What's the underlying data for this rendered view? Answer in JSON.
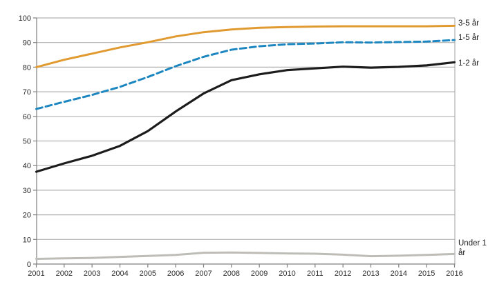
{
  "chart_data": {
    "type": "line",
    "title": "",
    "xlabel": "",
    "ylabel": "",
    "x": [
      2001,
      2002,
      2003,
      2004,
      2005,
      2006,
      2007,
      2008,
      2009,
      2010,
      2011,
      2012,
      2013,
      2014,
      2015,
      2016
    ],
    "y_ticks": [
      0,
      10,
      20,
      30,
      40,
      50,
      60,
      70,
      80,
      90,
      100
    ],
    "ylim": [
      0,
      100
    ],
    "grid": "horizontal",
    "legend_position": "right-of-line-ends",
    "series": [
      {
        "name": "3-5 år",
        "color": "#E09A30",
        "style": "solid",
        "values": [
          80,
          83,
          85.5,
          88,
          90.1,
          92.5,
          94.2,
          95.3,
          96,
          96.3,
          96.5,
          96.6,
          96.6,
          96.6,
          96.6,
          96.8
        ]
      },
      {
        "name": "1-5 år",
        "color": "#1C86C0",
        "style": "dashed",
        "values": [
          63,
          65.9,
          68.7,
          72,
          76,
          80.4,
          84.2,
          87.1,
          88.5,
          89.3,
          89.6,
          90.1,
          90,
          90.2,
          90.4,
          91
        ]
      },
      {
        "name": "1-2 år",
        "color": "#1C1C1C",
        "style": "solid",
        "values": [
          37.5,
          40.9,
          44,
          48,
          54,
          62,
          69.3,
          74.7,
          77.1,
          78.8,
          79.5,
          80.2,
          79.8,
          80.1,
          80.7,
          82
        ]
      },
      {
        "name": "Under 1 år",
        "color": "#BDBCB6",
        "style": "solid",
        "values": [
          2.1,
          2.3,
          2.5,
          2.9,
          3.3,
          3.7,
          4.6,
          4.7,
          4.5,
          4.3,
          4.2,
          3.8,
          3.2,
          3.4,
          3.7,
          4.1
        ]
      }
    ]
  },
  "colors": {
    "background": "#FFFFFF",
    "gridline": "#B0B0B0",
    "axis": "#7F7F7F",
    "right_border": "#B0B0B0",
    "tick_label": "#2B2B2B",
    "end_label": "#1A1A1A"
  }
}
